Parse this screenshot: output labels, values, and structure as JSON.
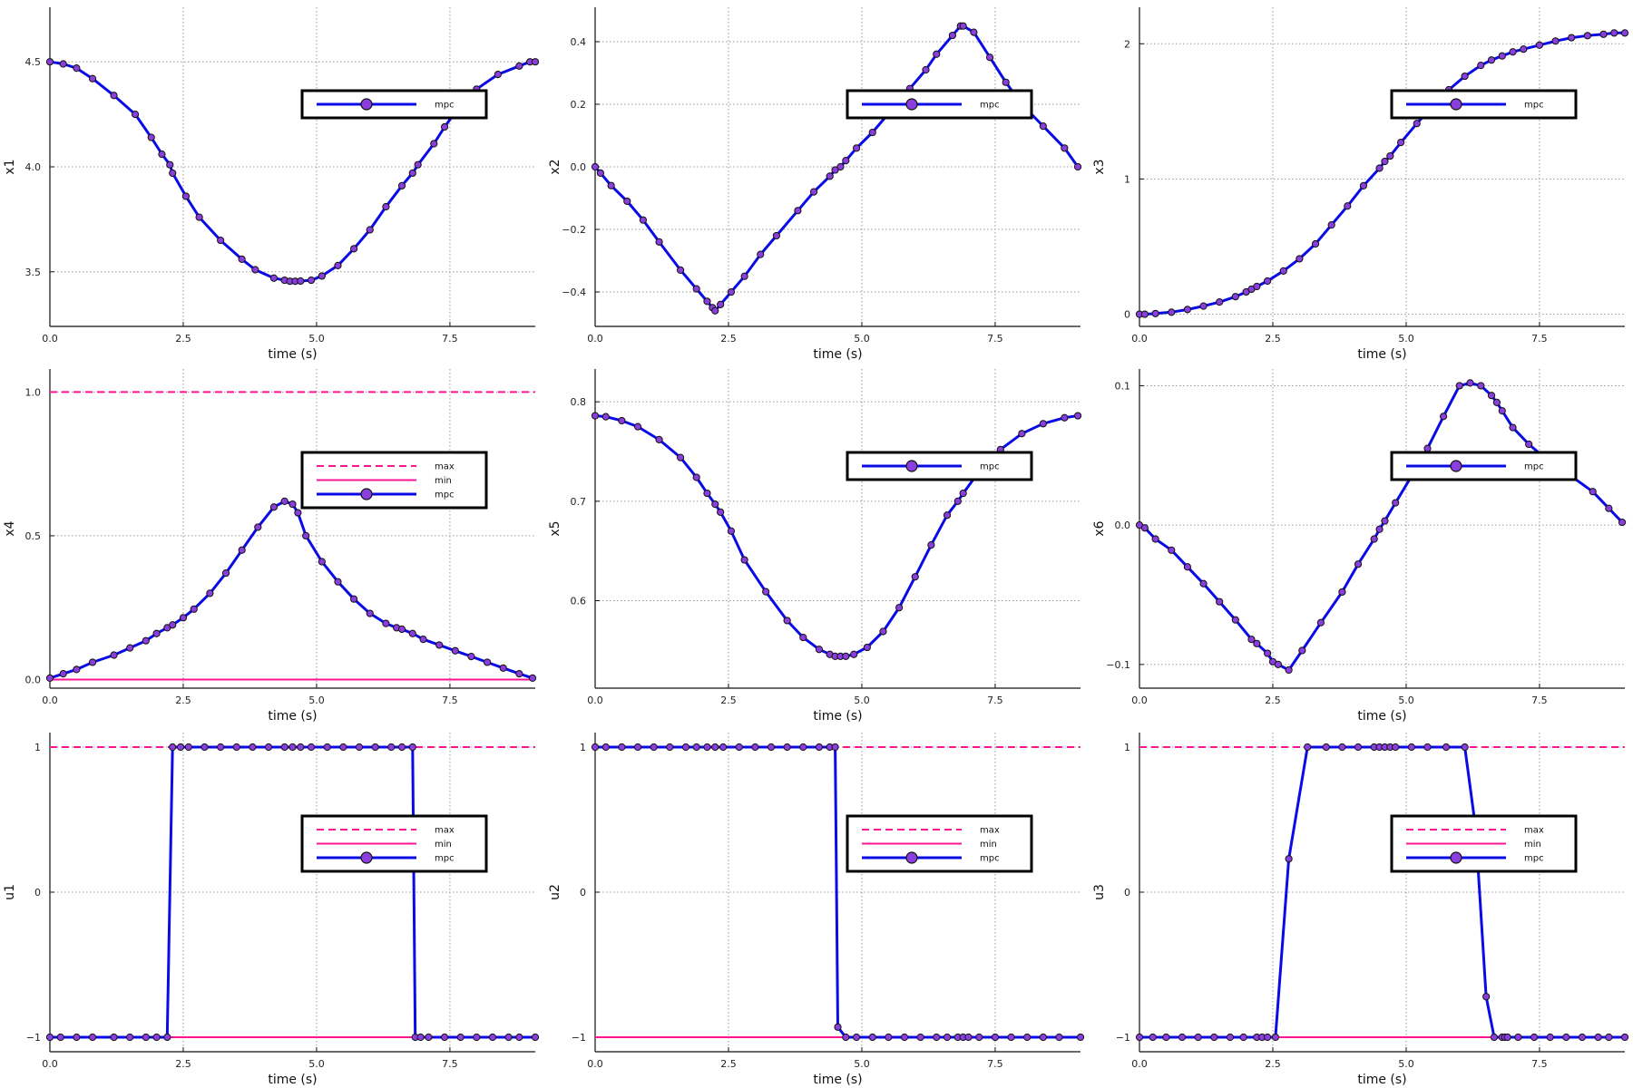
{
  "colors": {
    "mpc_line": "#0a0ae6",
    "mpc_marker": "#8a3fdc",
    "marker_edge": "#111111",
    "constraint": "#ff1493",
    "grid": "#9a9a9a",
    "axis": "#111111"
  },
  "chart_data": [
    {
      "type": "line",
      "xlabel": "time (s)",
      "ylabel": "x1",
      "xlim": [
        0,
        9.1
      ],
      "ylim": [
        3.24,
        4.76
      ],
      "xticks": [
        0,
        2.5,
        5,
        7.5
      ],
      "xtick_labels": [
        "0.0",
        "2.5",
        "5.0",
        "7.5"
      ],
      "yticks": [
        3.5,
        4.0,
        4.5
      ],
      "ytick_labels": [
        "3.5",
        "4.0",
        "4.5"
      ],
      "grid": true,
      "legend": {
        "placement": "top-right",
        "entries": [
          "mpc"
        ]
      },
      "series": [
        {
          "name": "mpc",
          "x": [
            0,
            0.25,
            0.5,
            0.8,
            1.2,
            1.6,
            1.9,
            2.1,
            2.25,
            2.3,
            2.55,
            2.8,
            3.2,
            3.6,
            3.85,
            4.2,
            4.4,
            4.5,
            4.6,
            4.7,
            4.9,
            5.1,
            5.4,
            5.7,
            6.0,
            6.3,
            6.6,
            6.8,
            6.9,
            7.2,
            7.4,
            7.6,
            8.0,
            8.4,
            8.8,
            9.0,
            9.1
          ],
          "y": [
            4.5,
            4.49,
            4.47,
            4.42,
            4.34,
            4.25,
            4.14,
            4.06,
            4.01,
            3.97,
            3.86,
            3.76,
            3.65,
            3.56,
            3.51,
            3.47,
            3.46,
            3.455,
            3.455,
            3.456,
            3.46,
            3.48,
            3.53,
            3.61,
            3.7,
            3.81,
            3.91,
            3.97,
            4.01,
            4.11,
            4.19,
            4.26,
            4.37,
            4.44,
            4.48,
            4.5,
            4.5
          ]
        }
      ]
    },
    {
      "type": "line",
      "xlabel": "time (s)",
      "ylabel": "x2",
      "xlim": [
        0,
        9.1
      ],
      "ylim": [
        -0.51,
        0.51
      ],
      "xticks": [
        0,
        2.5,
        5,
        7.5
      ],
      "xtick_labels": [
        "0.0",
        "2.5",
        "5.0",
        "7.5"
      ],
      "yticks": [
        -0.4,
        -0.2,
        0.0,
        0.2,
        0.4
      ],
      "ytick_labels": [
        "−0.4",
        "−0.2",
        "0.0",
        "0.2",
        "0.4"
      ],
      "grid": true,
      "legend": {
        "placement": "top-right",
        "entries": [
          "mpc"
        ]
      },
      "series": [
        {
          "name": "mpc",
          "x": [
            0,
            0.1,
            0.3,
            0.6,
            0.9,
            1.2,
            1.6,
            1.9,
            2.1,
            2.2,
            2.25,
            2.35,
            2.55,
            2.8,
            3.1,
            3.4,
            3.8,
            4.1,
            4.4,
            4.5,
            4.6,
            4.7,
            4.9,
            5.2,
            5.6,
            5.9,
            6.2,
            6.4,
            6.7,
            6.85,
            6.9,
            7.1,
            7.4,
            7.7,
            8.0,
            8.4,
            8.8,
            9.05
          ],
          "y": [
            0.0,
            -0.02,
            -0.06,
            -0.11,
            -0.17,
            -0.24,
            -0.33,
            -0.39,
            -0.43,
            -0.45,
            -0.46,
            -0.44,
            -0.4,
            -0.35,
            -0.28,
            -0.22,
            -0.14,
            -0.08,
            -0.03,
            -0.01,
            0.0,
            0.02,
            0.06,
            0.11,
            0.19,
            0.25,
            0.31,
            0.36,
            0.42,
            0.45,
            0.45,
            0.43,
            0.35,
            0.27,
            0.2,
            0.13,
            0.06,
            0.0
          ]
        }
      ]
    },
    {
      "type": "line",
      "xlabel": "time (s)",
      "ylabel": "x3",
      "xlim": [
        0,
        9.1
      ],
      "ylim": [
        -0.09,
        2.27
      ],
      "xticks": [
        0,
        2.5,
        5,
        7.5
      ],
      "xtick_labels": [
        "0.0",
        "2.5",
        "5.0",
        "7.5"
      ],
      "yticks": [
        0,
        1,
        2
      ],
      "ytick_labels": [
        "0",
        "1",
        "2"
      ],
      "grid": true,
      "legend": {
        "placement": "top-right",
        "entries": [
          "mpc"
        ]
      },
      "series": [
        {
          "name": "mpc",
          "x": [
            0,
            0.1,
            0.3,
            0.6,
            0.9,
            1.2,
            1.5,
            1.8,
            2.0,
            2.1,
            2.2,
            2.4,
            2.7,
            3.0,
            3.3,
            3.6,
            3.9,
            4.2,
            4.5,
            4.6,
            4.7,
            4.9,
            5.2,
            5.5,
            5.8,
            6.1,
            6.4,
            6.6,
            6.8,
            7.0,
            7.2,
            7.5,
            7.8,
            8.1,
            8.4,
            8.7,
            8.9,
            9.1
          ],
          "y": [
            0.0,
            0.0,
            0.005,
            0.015,
            0.035,
            0.06,
            0.09,
            0.13,
            0.165,
            0.185,
            0.205,
            0.245,
            0.32,
            0.41,
            0.52,
            0.66,
            0.8,
            0.95,
            1.08,
            1.13,
            1.17,
            1.27,
            1.41,
            1.54,
            1.66,
            1.76,
            1.84,
            1.88,
            1.91,
            1.94,
            1.96,
            1.99,
            2.02,
            2.045,
            2.06,
            2.07,
            2.08,
            2.08
          ]
        }
      ]
    },
    {
      "type": "line",
      "xlabel": "time (s)",
      "ylabel": "x4",
      "xlim": [
        0,
        9.1
      ],
      "ylim": [
        -0.03,
        1.08
      ],
      "xticks": [
        0,
        2.5,
        5,
        7.5
      ],
      "xtick_labels": [
        "0.0",
        "2.5",
        "5.0",
        "7.5"
      ],
      "yticks": [
        0.0,
        0.5,
        1.0
      ],
      "ytick_labels": [
        "0.0",
        "0.5",
        "1.0"
      ],
      "grid": true,
      "legend": {
        "placement": "top-right",
        "entries": [
          "max",
          "min",
          "mpc"
        ]
      },
      "constraints": {
        "max": 1.0,
        "min": 0.0
      },
      "series": [
        {
          "name": "mpc",
          "x": [
            0,
            0.25,
            0.5,
            0.8,
            1.2,
            1.5,
            1.8,
            2.0,
            2.2,
            2.3,
            2.5,
            2.7,
            3.0,
            3.3,
            3.6,
            3.9,
            4.2,
            4.4,
            4.55,
            4.65,
            4.8,
            5.1,
            5.4,
            5.7,
            6.0,
            6.3,
            6.5,
            6.6,
            6.8,
            7.0,
            7.3,
            7.6,
            7.9,
            8.2,
            8.5,
            8.8,
            9.05
          ],
          "y": [
            0.005,
            0.02,
            0.035,
            0.06,
            0.085,
            0.11,
            0.135,
            0.16,
            0.18,
            0.19,
            0.215,
            0.245,
            0.3,
            0.37,
            0.45,
            0.53,
            0.6,
            0.62,
            0.61,
            0.58,
            0.5,
            0.41,
            0.34,
            0.28,
            0.23,
            0.195,
            0.18,
            0.175,
            0.16,
            0.14,
            0.12,
            0.1,
            0.08,
            0.06,
            0.04,
            0.02,
            0.005
          ]
        }
      ]
    },
    {
      "type": "line",
      "xlabel": "time (s)",
      "ylabel": "x5",
      "xlim": [
        0,
        9.1
      ],
      "ylim": [
        0.512,
        0.833
      ],
      "xticks": [
        0,
        2.5,
        5,
        7.5
      ],
      "xtick_labels": [
        "0.0",
        "2.5",
        "5.0",
        "7.5"
      ],
      "yticks": [
        0.6,
        0.7,
        0.8
      ],
      "ytick_labels": [
        "0.6",
        "0.7",
        "0.8"
      ],
      "grid": true,
      "legend": {
        "placement": "top-right",
        "entries": [
          "mpc"
        ]
      },
      "series": [
        {
          "name": "mpc",
          "x": [
            0,
            0.2,
            0.5,
            0.8,
            1.2,
            1.6,
            1.9,
            2.1,
            2.25,
            2.35,
            2.55,
            2.8,
            3.2,
            3.6,
            3.9,
            4.2,
            4.4,
            4.5,
            4.6,
            4.7,
            4.85,
            5.1,
            5.4,
            5.7,
            6.0,
            6.3,
            6.6,
            6.8,
            6.9,
            7.2,
            7.4,
            7.6,
            8.0,
            8.4,
            8.8,
            9.05
          ],
          "y": [
            0.786,
            0.785,
            0.781,
            0.775,
            0.762,
            0.744,
            0.724,
            0.708,
            0.697,
            0.689,
            0.67,
            0.641,
            0.609,
            0.58,
            0.563,
            0.551,
            0.546,
            0.544,
            0.544,
            0.544,
            0.546,
            0.553,
            0.569,
            0.593,
            0.624,
            0.656,
            0.686,
            0.7,
            0.708,
            0.73,
            0.743,
            0.752,
            0.768,
            0.778,
            0.784,
            0.786
          ]
        }
      ]
    },
    {
      "type": "line",
      "xlabel": "time (s)",
      "ylabel": "x6",
      "xlim": [
        0,
        9.1
      ],
      "ylim": [
        -0.117,
        0.112
      ],
      "xticks": [
        0,
        2.5,
        5,
        7.5
      ],
      "xtick_labels": [
        "0.0",
        "2.5",
        "5.0",
        "7.5"
      ],
      "yticks": [
        -0.1,
        0.0,
        0.1
      ],
      "ytick_labels": [
        "−0.1",
        "0.0",
        "0.1"
      ],
      "grid": true,
      "legend": {
        "placement": "top-right",
        "entries": [
          "mpc"
        ]
      },
      "series": [
        {
          "name": "mpc",
          "x": [
            0,
            0.1,
            0.3,
            0.6,
            0.9,
            1.2,
            1.5,
            1.8,
            2.1,
            2.2,
            2.4,
            2.5,
            2.6,
            2.8,
            3.05,
            3.4,
            3.8,
            4.1,
            4.4,
            4.5,
            4.6,
            4.8,
            5.1,
            5.4,
            5.7,
            6.0,
            6.2,
            6.4,
            6.6,
            6.7,
            6.8,
            7.0,
            7.3,
            7.7,
            8.1,
            8.5,
            8.8,
            9.05
          ],
          "y": [
            0.0,
            -0.002,
            -0.01,
            -0.018,
            -0.03,
            -0.042,
            -0.055,
            -0.068,
            -0.082,
            -0.085,
            -0.092,
            -0.098,
            -0.1,
            -0.104,
            -0.09,
            -0.07,
            -0.048,
            -0.028,
            -0.01,
            -0.003,
            0.003,
            0.016,
            0.035,
            0.055,
            0.078,
            0.1,
            0.102,
            0.1,
            0.093,
            0.088,
            0.082,
            0.07,
            0.058,
            0.045,
            0.035,
            0.024,
            0.012,
            0.002
          ]
        }
      ]
    },
    {
      "type": "line",
      "xlabel": "time (s)",
      "ylabel": "u1",
      "xlim": [
        0,
        9.1
      ],
      "ylim": [
        -1.1,
        1.1
      ],
      "xticks": [
        0,
        2.5,
        5,
        7.5
      ],
      "xtick_labels": [
        "0.0",
        "2.5",
        "5.0",
        "7.5"
      ],
      "yticks": [
        -1,
        0,
        1
      ],
      "ytick_labels": [
        "−1",
        "0",
        "1"
      ],
      "grid": true,
      "legend": {
        "placement": "top-right",
        "entries": [
          "max",
          "min",
          "mpc"
        ]
      },
      "constraints": {
        "max": 1,
        "min": -1
      },
      "series": [
        {
          "name": "mpc",
          "x": [
            0,
            0.2,
            0.5,
            0.8,
            1.2,
            1.5,
            1.8,
            2.0,
            2.2,
            2.3,
            2.45,
            2.6,
            2.9,
            3.2,
            3.5,
            3.8,
            4.1,
            4.4,
            4.55,
            4.7,
            4.9,
            5.2,
            5.5,
            5.8,
            6.1,
            6.4,
            6.6,
            6.8,
            6.85,
            6.95,
            7.1,
            7.4,
            7.7,
            8.0,
            8.3,
            8.6,
            8.8,
            9.1
          ],
          "y": [
            -1,
            -1,
            -1,
            -1,
            -1,
            -1,
            -1,
            -1,
            -1,
            1,
            1,
            1,
            1,
            1,
            1,
            1,
            1,
            1,
            1,
            1,
            1,
            1,
            1,
            1,
            1,
            1,
            1,
            1,
            -1,
            -1,
            -1,
            -1,
            -1,
            -1,
            -1,
            -1,
            -1,
            -1
          ]
        }
      ]
    },
    {
      "type": "line",
      "xlabel": "time (s)",
      "ylabel": "u2",
      "xlim": [
        0,
        9.1
      ],
      "ylim": [
        -1.1,
        1.1
      ],
      "xticks": [
        0,
        2.5,
        5,
        7.5
      ],
      "xtick_labels": [
        "0.0",
        "2.5",
        "5.0",
        "7.5"
      ],
      "yticks": [
        -1,
        0,
        1
      ],
      "ytick_labels": [
        "−1",
        "0",
        "1"
      ],
      "grid": true,
      "legend": {
        "placement": "top-right",
        "entries": [
          "max",
          "min",
          "mpc"
        ]
      },
      "constraints": {
        "max": 1,
        "min": -1
      },
      "series": [
        {
          "name": "mpc",
          "x": [
            0,
            0.2,
            0.5,
            0.8,
            1.1,
            1.4,
            1.7,
            1.9,
            2.1,
            2.25,
            2.4,
            2.7,
            3.0,
            3.3,
            3.6,
            3.9,
            4.2,
            4.4,
            4.5,
            4.55,
            4.7,
            4.9,
            5.2,
            5.5,
            5.8,
            6.1,
            6.4,
            6.6,
            6.8,
            6.9,
            7.0,
            7.2,
            7.5,
            7.8,
            8.1,
            8.4,
            8.7,
            9.1
          ],
          "y": [
            1,
            1,
            1,
            1,
            1,
            1,
            1,
            1,
            1,
            1,
            1,
            1,
            1,
            1,
            1,
            1,
            1,
            1,
            1,
            -0.93,
            -1,
            -1,
            -1,
            -1,
            -1,
            -1,
            -1,
            -1,
            -1,
            -1,
            -1,
            -1,
            -1,
            -1,
            -1,
            -1,
            -1,
            -1
          ]
        }
      ]
    },
    {
      "type": "line",
      "xlabel": "time (s)",
      "ylabel": "u3",
      "xlim": [
        0,
        9.1
      ],
      "ylim": [
        -1.1,
        1.1
      ],
      "xticks": [
        0,
        2.5,
        5,
        7.5
      ],
      "xtick_labels": [
        "0.0",
        "2.5",
        "5.0",
        "7.5"
      ],
      "yticks": [
        -1,
        0,
        1
      ],
      "ytick_labels": [
        "−1",
        "0",
        "1"
      ],
      "grid": true,
      "legend": {
        "placement": "top-right",
        "entries": [
          "max",
          "min",
          "mpc"
        ]
      },
      "constraints": {
        "max": 1,
        "min": -1
      },
      "series": [
        {
          "name": "mpc",
          "x": [
            0,
            0.25,
            0.5,
            0.8,
            1.1,
            1.4,
            1.7,
            1.95,
            2.2,
            2.3,
            2.4,
            2.55,
            2.8,
            3.15,
            3.5,
            3.8,
            4.1,
            4.4,
            4.5,
            4.6,
            4.7,
            4.8,
            5.1,
            5.4,
            5.75,
            6.1,
            6.3,
            6.5,
            6.65,
            6.8,
            6.85,
            6.9,
            7.1,
            7.4,
            7.7,
            8.0,
            8.3,
            8.6,
            8.8,
            9.1
          ],
          "y": [
            -1,
            -1,
            -1,
            -1,
            -1,
            -1,
            -1,
            -1,
            -1,
            -1,
            -1,
            -1,
            0.23,
            1,
            1,
            1,
            1,
            1,
            1,
            1,
            1,
            1,
            1,
            1,
            1,
            1,
            0.45,
            -0.72,
            -1,
            -1,
            -1,
            -1,
            -1,
            -1,
            -1,
            -1,
            -1,
            -1,
            -1,
            -1
          ]
        }
      ]
    }
  ]
}
